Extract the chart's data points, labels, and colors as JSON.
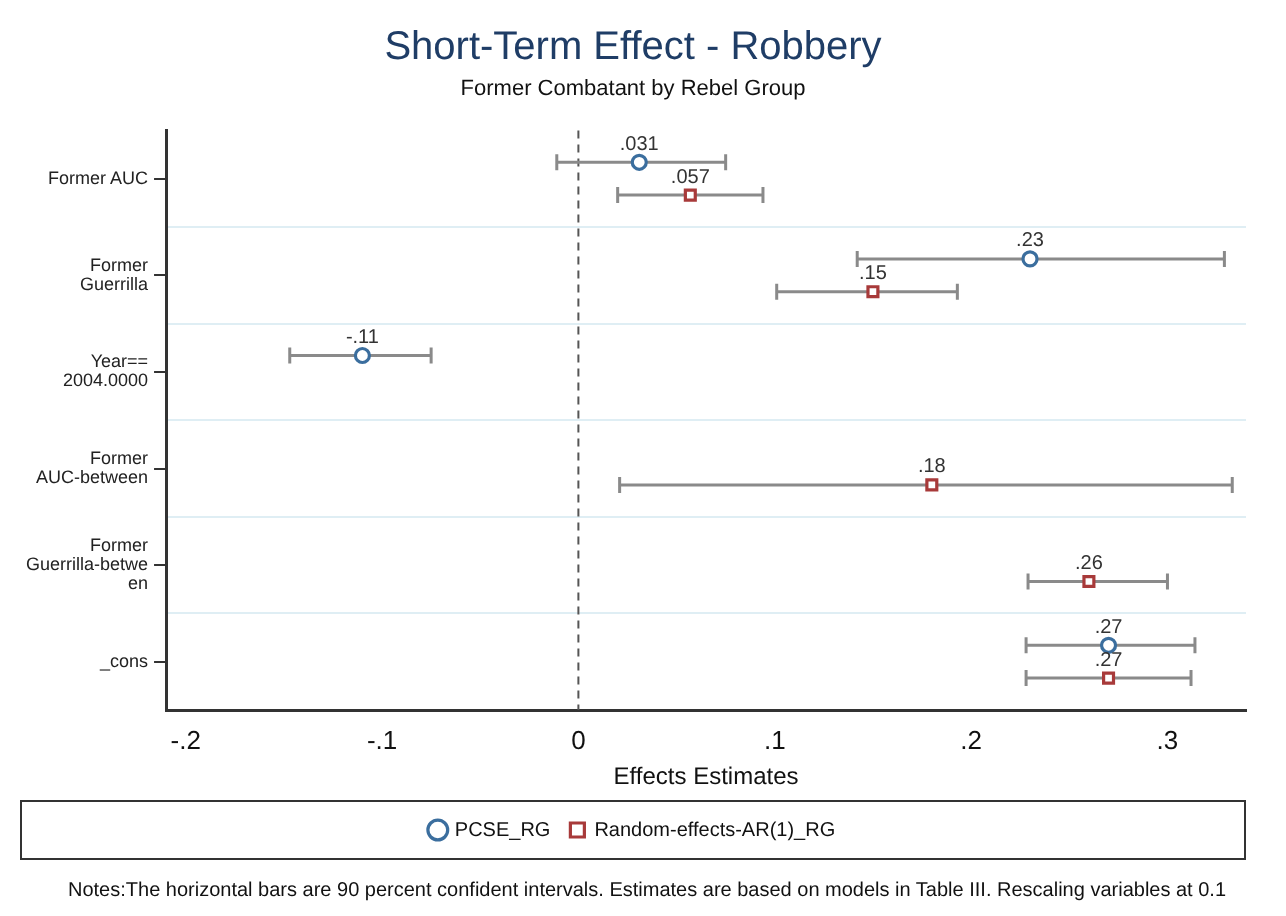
{
  "chart_data": {
    "type": "scatter",
    "orientation": "horizontal",
    "title": "Short-Term Effect - Robbery",
    "subtitle": "Former Combatant by Rebel Group",
    "xlabel": "Effects Estimates",
    "categories": [
      "Former AUC",
      "Former Guerrilla",
      "Year== 2004.0000",
      "Former AUC-between",
      "Former Guerrilla-between",
      "_cons"
    ],
    "series": [
      {
        "name": "PCSE_RG",
        "color": "#3b6e9e",
        "marker": "circle",
        "values": [
          0.031,
          0.23,
          -0.11,
          null,
          null,
          0.27
        ],
        "value_labels": [
          ".031",
          ".23",
          "-.11",
          null,
          null,
          ".27"
        ],
        "errors": [
          [
            -0.011,
            0.075
          ],
          [
            0.142,
            0.329
          ],
          [
            -0.147,
            -0.075
          ],
          null,
          null,
          [
            0.228,
            0.314
          ]
        ]
      },
      {
        "name": "Random-effects-AR(1)_RG",
        "color": "#a83a3a",
        "marker": "square",
        "values": [
          0.057,
          0.15,
          null,
          0.18,
          0.26,
          0.27
        ],
        "value_labels": [
          ".057",
          ".15",
          null,
          ".18",
          ".26",
          ".27"
        ],
        "errors": [
          [
            0.02,
            0.094
          ],
          [
            0.101,
            0.193
          ],
          null,
          [
            0.021,
            0.333
          ],
          [
            0.229,
            0.3
          ],
          [
            0.228,
            0.312
          ]
        ]
      }
    ],
    "xlim": [
      -0.21,
      0.34
    ],
    "xticks": [
      {
        "value": -0.2,
        "label": "-.2"
      },
      {
        "value": -0.1,
        "label": "-.1"
      },
      0,
      {
        "value": 0.1,
        "label": ".1"
      },
      {
        "value": 0.2,
        "label": ".2"
      },
      {
        "value": 0.3,
        "label": ".3"
      }
    ],
    "ref_lines": [
      {
        "axis": "x",
        "value": 0,
        "line_style": "dashed",
        "color": "#555555"
      }
    ],
    "grid": "y",
    "legend": "bottom",
    "annotations": [
      "Notes:The horizontal bars are 90 percent confident intervals. Estimates are based on models in Table III. Rescaling variables at 0.1"
    ]
  }
}
